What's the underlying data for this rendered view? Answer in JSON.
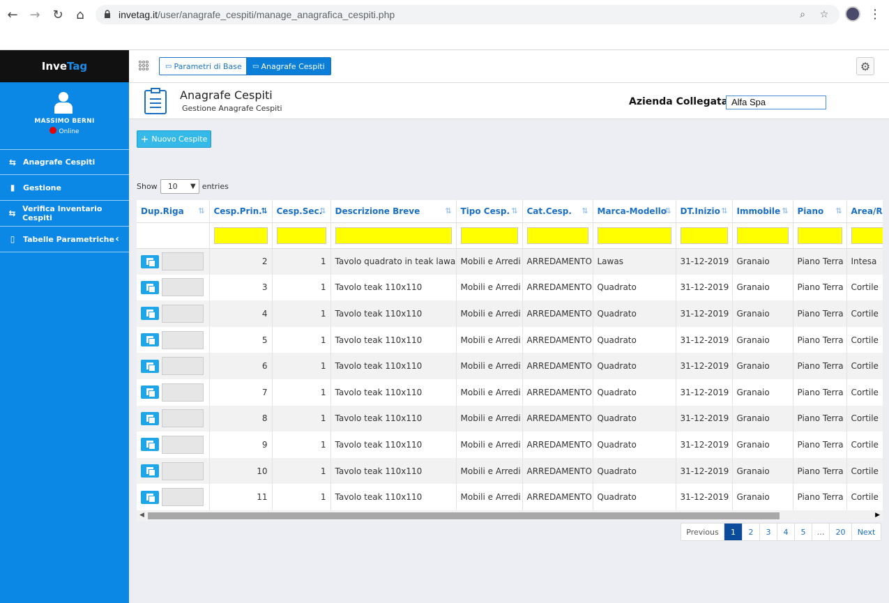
{
  "browser": {
    "url_host": "invetag.it",
    "url_path": "/user/anagrafe_cespiti/manage_anagrafica_cespiti.php"
  },
  "sidebar": {
    "brand_a": "Inve",
    "brand_b": "Tag",
    "user_name": "MASSIMO BERNI",
    "user_status": "Online",
    "items": [
      {
        "label": "Anagrafe Cespiti",
        "icon": "arrows-exchange-icon"
      },
      {
        "label": "Gestione",
        "icon": "bar-chart-icon"
      },
      {
        "label": "Verifica Inventario Cespiti",
        "icon": "arrows-exchange-icon"
      },
      {
        "label": "Tabelle Parametriche",
        "icon": "book-icon"
      }
    ]
  },
  "toolbar": {
    "btn_params": "Parametri di Base",
    "btn_anagrafe": "Anagrafe Cespiti"
  },
  "header": {
    "title": "Anagrafe Cespiti",
    "subtitle": "Gestione Anagrafe Cespiti",
    "azienda_label": "Azienda Collegata:",
    "azienda_value": "Alfa Spa"
  },
  "actions": {
    "new_label": "Nuovo Cespite"
  },
  "length": {
    "show": "Show",
    "value": "10",
    "entries": "entries"
  },
  "table": {
    "columns": [
      "Dup.Riga",
      "Cesp.Prin.",
      "Cesp.Sec.",
      "Descrizione Breve",
      "Tipo Cesp.",
      "Cat.Cesp.",
      "Marca-Modello",
      "DT.Inizio",
      "Immobile",
      "Piano",
      "Area/Re"
    ],
    "rows": [
      {
        "prin": "2",
        "sec": "1",
        "desc": "Tavolo quadrato in teak lawas",
        "tipo": "Mobili e Arredi",
        "cat": "ARREDAMENTO",
        "marca": "Lawas",
        "dt": "31-12-2019",
        "imm": "Granaio",
        "piano": "Piano Terra",
        "area": "Intesa"
      },
      {
        "prin": "3",
        "sec": "1",
        "desc": "Tavolo teak 110x110",
        "tipo": "Mobili e Arredi",
        "cat": "ARREDAMENTO",
        "marca": "Quadrato",
        "dt": "31-12-2019",
        "imm": "Granaio",
        "piano": "Piano Terra",
        "area": "Cortile"
      },
      {
        "prin": "4",
        "sec": "1",
        "desc": "Tavolo teak 110x110",
        "tipo": "Mobili e Arredi",
        "cat": "ARREDAMENTO",
        "marca": "Quadrato",
        "dt": "31-12-2019",
        "imm": "Granaio",
        "piano": "Piano Terra",
        "area": "Cortile"
      },
      {
        "prin": "5",
        "sec": "1",
        "desc": "Tavolo teak 110x110",
        "tipo": "Mobili e Arredi",
        "cat": "ARREDAMENTO",
        "marca": "Quadrato",
        "dt": "31-12-2019",
        "imm": "Granaio",
        "piano": "Piano Terra",
        "area": "Cortile"
      },
      {
        "prin": "6",
        "sec": "1",
        "desc": "Tavolo teak 110x110",
        "tipo": "Mobili e Arredi",
        "cat": "ARREDAMENTO",
        "marca": "Quadrato",
        "dt": "31-12-2019",
        "imm": "Granaio",
        "piano": "Piano Terra",
        "area": "Cortile"
      },
      {
        "prin": "7",
        "sec": "1",
        "desc": "Tavolo teak 110x110",
        "tipo": "Mobili e Arredi",
        "cat": "ARREDAMENTO",
        "marca": "Quadrato",
        "dt": "31-12-2019",
        "imm": "Granaio",
        "piano": "Piano Terra",
        "area": "Cortile"
      },
      {
        "prin": "8",
        "sec": "1",
        "desc": "Tavolo teak 110x110",
        "tipo": "Mobili e Arredi",
        "cat": "ARREDAMENTO",
        "marca": "Quadrato",
        "dt": "31-12-2019",
        "imm": "Granaio",
        "piano": "Piano Terra",
        "area": "Cortile"
      },
      {
        "prin": "9",
        "sec": "1",
        "desc": "Tavolo teak 110x110",
        "tipo": "Mobili e Arredi",
        "cat": "ARREDAMENTO",
        "marca": "Quadrato",
        "dt": "31-12-2019",
        "imm": "Granaio",
        "piano": "Piano Terra",
        "area": "Cortile"
      },
      {
        "prin": "10",
        "sec": "1",
        "desc": "Tavolo teak 110x110",
        "tipo": "Mobili e Arredi",
        "cat": "ARREDAMENTO",
        "marca": "Quadrato",
        "dt": "31-12-2019",
        "imm": "Granaio",
        "piano": "Piano Terra",
        "area": "Cortile"
      },
      {
        "prin": "11",
        "sec": "1",
        "desc": "Tavolo teak 110x110",
        "tipo": "Mobili e Arredi",
        "cat": "ARREDAMENTO",
        "marca": "Quadrato",
        "dt": "31-12-2019",
        "imm": "Granaio",
        "piano": "Piano Terra",
        "area": "Cortile"
      }
    ]
  },
  "pagination": {
    "previous": "Previous",
    "pages": [
      "1",
      "2",
      "3",
      "4",
      "5",
      "…",
      "20"
    ],
    "active": "1",
    "next": "Next"
  },
  "colors": {
    "sidebar": "#0b87e6",
    "header_text": "#1a6fc4",
    "filter": "#ffff00",
    "new_button": "#34b9e8",
    "status_offline": "#e60000"
  }
}
